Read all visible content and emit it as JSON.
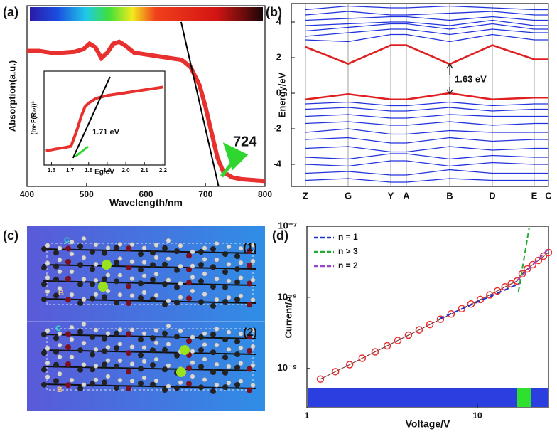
{
  "chart_data": [
    {
      "type": "line",
      "label": "(a)",
      "xlabel": "Wavelength/nm",
      "ylabel": "Absorption(a.u.)",
      "x": [
        400,
        420,
        440,
        460,
        480,
        495,
        505,
        515,
        525,
        535,
        545,
        555,
        565,
        580,
        600,
        620,
        640,
        660,
        675,
        690,
        700,
        710,
        720,
        730,
        745,
        760,
        780,
        800
      ],
      "xlim": [
        400,
        800
      ],
      "xticks": [
        400,
        500,
        600,
        700,
        800
      ],
      "ylim": [
        0,
        1
      ],
      "series": [
        {
          "color": "#e8302f",
          "values": [
            0.75,
            0.75,
            0.74,
            0.74,
            0.745,
            0.76,
            0.79,
            0.77,
            0.71,
            0.74,
            0.79,
            0.8,
            0.78,
            0.74,
            0.73,
            0.72,
            0.71,
            0.7,
            0.66,
            0.56,
            0.44,
            0.3,
            0.16,
            0.08,
            0.05,
            0.04,
            0.035,
            0.03
          ]
        },
        {
          "color": "#000000",
          "x": [
            659,
            722
          ],
          "values": [
            0.91,
            0
          ]
        }
      ],
      "annotations": [
        "724"
      ]
    },
    {
      "type": "line",
      "xlabel": "Eg/eV",
      "ylabel": "(hν·F(R∞))²",
      "xlim": [
        1.56,
        2.21
      ],
      "xticks": [
        1.6,
        1.7,
        1.8,
        1.9,
        {
          "value": 2,
          "label": "2.0"
        },
        2.1,
        2.2
      ],
      "ylim": [
        0,
        1
      ],
      "series": [
        {
          "color": "#e8302f",
          "x": [
            1.57,
            1.62,
            1.68,
            1.705,
            1.72,
            1.74,
            1.76,
            1.78,
            1.8,
            1.84,
            1.9,
            2.0,
            2.1,
            2.2
          ],
          "values": [
            0.15,
            0.17,
            0.19,
            0.2,
            0.28,
            0.39,
            0.52,
            0.62,
            0.66,
            0.71,
            0.74,
            0.77,
            0.8,
            0.83
          ]
        },
        {
          "color": "#000000",
          "x": [
            1.716,
            1.915
          ],
          "values": [
            0.076,
            0.94
          ]
        }
      ],
      "annotations": [
        "1.71 eV"
      ]
    },
    {
      "type": "line",
      "label": "(b)",
      "ylabel": "Energy/eV",
      "categories": [
        "Z",
        "G",
        "Y",
        "A",
        "B",
        "D",
        "E",
        "C"
      ],
      "ylim": [
        -5.24,
        5.04
      ],
      "yticks": [
        -4,
        -2,
        0,
        2,
        4
      ],
      "series": [
        {
          "color": "#2233dd",
          "values": [
            3.0,
            2.9,
            3.3,
            3.3,
            2.9,
            3.3,
            3.0,
            3.0
          ]
        },
        {
          "color": "#2233dd",
          "values": [
            3.2,
            3.4,
            3.6,
            3.6,
            3.3,
            3.6,
            3.4,
            3.4
          ]
        },
        {
          "color": "#2233dd",
          "values": [
            3.5,
            3.7,
            3.9,
            3.9,
            3.6,
            3.9,
            3.6,
            3.6
          ]
        },
        {
          "color": "#2233dd",
          "values": [
            3.8,
            3.9,
            4.0,
            4.0,
            3.8,
            4.1,
            3.8,
            3.8
          ]
        },
        {
          "color": "#2233dd",
          "values": [
            4.1,
            4.2,
            4.3,
            4.3,
            4.1,
            4.3,
            4.1,
            4.1
          ]
        },
        {
          "color": "#2233dd",
          "values": [
            4.4,
            4.6,
            4.4,
            4.4,
            4.5,
            4.6,
            4.4,
            4.4
          ]
        },
        {
          "color": "#2233dd",
          "values": [
            4.7,
            4.9,
            4.8,
            4.8,
            4.9,
            4.8,
            4.7,
            4.7
          ]
        },
        {
          "color": "#2233dd",
          "values": [
            -0.6,
            -0.5,
            -0.7,
            -0.7,
            -0.5,
            -0.7,
            -0.6,
            -0.6
          ]
        },
        {
          "color": "#2233dd",
          "values": [
            -0.9,
            -0.8,
            -1.0,
            -1.0,
            -0.8,
            -1.0,
            -0.9,
            -0.9
          ]
        },
        {
          "color": "#2233dd",
          "values": [
            -1.3,
            -1.2,
            -1.4,
            -1.4,
            -1.2,
            -1.3,
            -1.3,
            -1.3
          ]
        },
        {
          "color": "#2233dd",
          "values": [
            -1.7,
            -1.6,
            -1.8,
            -1.8,
            -1.6,
            -1.8,
            -1.7,
            -1.7
          ]
        },
        {
          "color": "#2233dd",
          "values": [
            -2.2,
            -2.0,
            -2.3,
            -2.3,
            -2.1,
            -2.2,
            -2.2,
            -2.2
          ]
        },
        {
          "color": "#2233dd",
          "values": [
            -2.6,
            -2.5,
            -2.8,
            -2.8,
            -2.5,
            -2.7,
            -2.6,
            -2.6
          ]
        },
        {
          "color": "#2233dd",
          "values": [
            -3.1,
            -3.0,
            -3.3,
            -3.3,
            -3.0,
            -3.2,
            -3.1,
            -3.1
          ]
        },
        {
          "color": "#2233dd",
          "values": [
            -3.6,
            -3.7,
            -3.4,
            -3.4,
            -3.7,
            -3.5,
            -3.6,
            -3.6
          ]
        },
        {
          "color": "#2233dd",
          "values": [
            -4.0,
            -4.1,
            -3.8,
            -3.8,
            -4.1,
            -3.9,
            -4.0,
            -4.0
          ]
        },
        {
          "color": "#2233dd",
          "values": [
            -4.5,
            -4.4,
            -4.6,
            -4.6,
            -4.3,
            -4.5,
            -4.5,
            -4.5
          ]
        },
        {
          "color": "#2233dd",
          "values": [
            -4.9,
            -4.8,
            -5.0,
            -5.0,
            -4.8,
            -4.9,
            -4.9,
            -4.9
          ]
        },
        {
          "color": "#e02020",
          "values": [
            2.6,
            1.65,
            2.7,
            2.7,
            1.63,
            2.7,
            1.9,
            1.9
          ]
        },
        {
          "color": "#e02020",
          "values": [
            -0.35,
            -0.05,
            -0.35,
            -0.35,
            0,
            -0.35,
            -0.25,
            -0.25
          ]
        }
      ],
      "annotations": [
        "1.63 eV"
      ]
    },
    {
      "type": "scatter",
      "label": "(d)",
      "xlabel": "Voltage/V",
      "ylabel": "Current/A",
      "xscale": "log",
      "yscale": "log",
      "xlim": [
        1,
        26.1
      ],
      "ylim": [
        2.8e-10,
        1e-07
      ],
      "xticks": [
        1,
        10
      ],
      "yticks": [
        {
          "value": 1e-09,
          "label": "10⁻⁹"
        },
        {
          "value": 1e-08,
          "label": "10⁻⁸"
        },
        {
          "value": 1e-07,
          "label": "10⁻⁷"
        }
      ],
      "legend": "upper left",
      "series": [
        {
          "color": "#e8302f",
          "marker": "circle",
          "x": [
            1.2,
            1.47,
            1.78,
            2.11,
            2.51,
            2.96,
            3.41,
            3.94,
            4.55,
            5.26,
            6.07,
            7.01,
            8.09,
            9.17,
            10.4,
            11.8,
            13.1,
            14.5,
            15.8,
            17.1,
            18.3,
            19.6,
            21.1,
            22.8,
            24.4,
            26.1
          ],
          "values": [
            7.08e-10,
            9e-10,
            1.13e-09,
            1.39e-09,
            1.71e-09,
            2.08e-09,
            2.47e-09,
            2.94e-09,
            3.48e-09,
            4.14e-09,
            4.92e-09,
            5.83e-09,
            6.93e-09,
            8.05e-09,
            9.33e-09,
            1.08e-08,
            1.23e-08,
            1.4e-08,
            1.55e-08,
            1.7e-08,
            2.14e-08,
            2.51e-08,
            2.88e-08,
            3.31e-08,
            3.8e-08,
            4.27e-08
          ]
        },
        {
          "name": "n = 1",
          "color": "#2233cc",
          "dash": true,
          "x": [
            6,
            18
          ],
          "values": [
            5e-09,
            1.6e-08
          ]
        },
        {
          "name": "n > 3",
          "color": "#22aa33",
          "dash": true,
          "x": [
            17.4,
            20.1
          ],
          "values": [
            1.2e-08,
            9.5e-08
          ]
        },
        {
          "name": "n = 2",
          "color": "#9944cc",
          "dash": true,
          "x": [
            17,
            26.1
          ],
          "values": [
            1.7e-08,
            4.8e-08
          ]
        }
      ]
    }
  ],
  "figure_c": {
    "label": "(c)",
    "structures": [
      "(1)",
      "(2)"
    ],
    "axes": [
      "C",
      "B",
      "C",
      "B"
    ]
  }
}
